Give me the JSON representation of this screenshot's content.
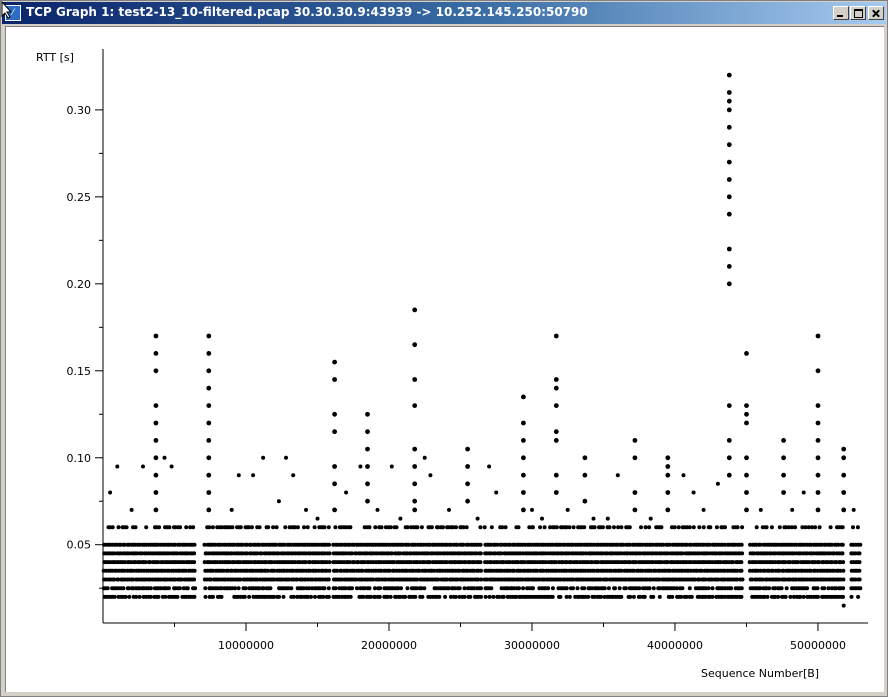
{
  "window": {
    "title": "TCP Graph 1: test2-13_10-filtered.pcap 30.30.30.9:43939 -> 10.252.145.250:50790",
    "icon": "wireshark-graph-icon",
    "controls": [
      "minimize",
      "maximize",
      "close"
    ]
  },
  "chart_data": {
    "type": "scatter",
    "ylabel": "RTT [s]",
    "xlabel": "Sequence Number[B]",
    "xlim": [
      0,
      53500000
    ],
    "ylim": [
      0.005,
      0.335
    ],
    "x_major_ticks": [
      10000000,
      20000000,
      30000000,
      40000000,
      50000000
    ],
    "x_tick_labels": [
      "10000000",
      "20000000",
      "30000000",
      "40000000",
      "50000000"
    ],
    "x_minor_ticks": [
      5000000,
      15000000,
      25000000,
      35000000,
      45000000
    ],
    "y_major_ticks": [
      0.05,
      0.1,
      0.15,
      0.2,
      0.25,
      0.3
    ],
    "y_tick_labels": [
      "0.05",
      "0.10",
      "0.15",
      "0.20",
      "0.25",
      "0.30"
    ],
    "y_minor_ticks": [
      0.025,
      0.075,
      0.125,
      0.175,
      0.225,
      0.275
    ],
    "grid": false,
    "legend": "none",
    "marker_color": "#000000",
    "baseline_bands": [
      0.02,
      0.025,
      0.03,
      0.035,
      0.04,
      0.045,
      0.05,
      0.06
    ],
    "baseline_x_range": [
      0,
      53000000
    ],
    "baseline_gaps": [
      [
        6500000,
        7000000
      ],
      [
        15900000,
        16100000
      ],
      [
        26500000,
        26700000
      ],
      [
        44800000,
        45200000
      ],
      [
        51800000,
        52300000
      ]
    ],
    "spikes": [
      {
        "x": 3700000,
        "values": [
          0.17,
          0.16,
          0.15,
          0.13,
          0.12,
          0.11,
          0.1,
          0.09,
          0.08,
          0.07
        ]
      },
      {
        "x": 7400000,
        "values": [
          0.17,
          0.16,
          0.15,
          0.14,
          0.13,
          0.12,
          0.11,
          0.1,
          0.09,
          0.08,
          0.07
        ]
      },
      {
        "x": 16200000,
        "values": [
          0.155,
          0.145,
          0.125,
          0.115,
          0.095,
          0.085,
          0.07
        ]
      },
      {
        "x": 18500000,
        "values": [
          0.125,
          0.115,
          0.105,
          0.095,
          0.085,
          0.075
        ]
      },
      {
        "x": 21800000,
        "values": [
          0.185,
          0.165,
          0.145,
          0.13,
          0.105,
          0.095,
          0.085,
          0.075,
          0.07
        ]
      },
      {
        "x": 25500000,
        "values": [
          0.105,
          0.095,
          0.085,
          0.075
        ]
      },
      {
        "x": 29400000,
        "values": [
          0.135,
          0.12,
          0.11,
          0.1,
          0.09,
          0.08,
          0.07
        ]
      },
      {
        "x": 31700000,
        "values": [
          0.17,
          0.145,
          0.14,
          0.13,
          0.115,
          0.11,
          0.09,
          0.08
        ]
      },
      {
        "x": 33700000,
        "values": [
          0.1,
          0.09,
          0.075
        ]
      },
      {
        "x": 37200000,
        "values": [
          0.11,
          0.1,
          0.08,
          0.07
        ]
      },
      {
        "x": 39500000,
        "values": [
          0.1,
          0.095,
          0.09,
          0.08,
          0.07
        ]
      },
      {
        "x": 43800000,
        "values": [
          0.32,
          0.31,
          0.305,
          0.3,
          0.29,
          0.28,
          0.27,
          0.26,
          0.25,
          0.24,
          0.22,
          0.21,
          0.2,
          0.13,
          0.11,
          0.1,
          0.09
        ]
      },
      {
        "x": 45000000,
        "values": [
          0.16,
          0.13,
          0.125,
          0.12,
          0.1,
          0.09,
          0.08,
          0.07
        ]
      },
      {
        "x": 47600000,
        "values": [
          0.11,
          0.1,
          0.09,
          0.08
        ]
      },
      {
        "x": 50000000,
        "values": [
          0.17,
          0.15,
          0.13,
          0.12,
          0.11,
          0.1,
          0.09,
          0.08,
          0.07
        ]
      },
      {
        "x": 51800000,
        "values": [
          0.105,
          0.1,
          0.09,
          0.08,
          0.07
        ]
      }
    ],
    "scattered_points": [
      {
        "x": 500000,
        "y": 0.08
      },
      {
        "x": 1000000,
        "y": 0.095
      },
      {
        "x": 2000000,
        "y": 0.07
      },
      {
        "x": 2800000,
        "y": 0.095
      },
      {
        "x": 4300000,
        "y": 0.1
      },
      {
        "x": 4800000,
        "y": 0.095
      },
      {
        "x": 9000000,
        "y": 0.07
      },
      {
        "x": 9500000,
        "y": 0.09
      },
      {
        "x": 10500000,
        "y": 0.09
      },
      {
        "x": 11200000,
        "y": 0.1
      },
      {
        "x": 12300000,
        "y": 0.075
      },
      {
        "x": 12800000,
        "y": 0.1
      },
      {
        "x": 13300000,
        "y": 0.09
      },
      {
        "x": 14200000,
        "y": 0.07
      },
      {
        "x": 15000000,
        "y": 0.065
      },
      {
        "x": 17000000,
        "y": 0.08
      },
      {
        "x": 18000000,
        "y": 0.095
      },
      {
        "x": 19200000,
        "y": 0.07
      },
      {
        "x": 20200000,
        "y": 0.095
      },
      {
        "x": 20800000,
        "y": 0.065
      },
      {
        "x": 22500000,
        "y": 0.1
      },
      {
        "x": 22900000,
        "y": 0.09
      },
      {
        "x": 24200000,
        "y": 0.07
      },
      {
        "x": 26200000,
        "y": 0.065
      },
      {
        "x": 27000000,
        "y": 0.095
      },
      {
        "x": 27500000,
        "y": 0.08
      },
      {
        "x": 30000000,
        "y": 0.07
      },
      {
        "x": 30700000,
        "y": 0.065
      },
      {
        "x": 32500000,
        "y": 0.07
      },
      {
        "x": 34300000,
        "y": 0.065
      },
      {
        "x": 35300000,
        "y": 0.065
      },
      {
        "x": 36000000,
        "y": 0.09
      },
      {
        "x": 38300000,
        "y": 0.065
      },
      {
        "x": 40600000,
        "y": 0.09
      },
      {
        "x": 41300000,
        "y": 0.08
      },
      {
        "x": 42000000,
        "y": 0.07
      },
      {
        "x": 43000000,
        "y": 0.085
      },
      {
        "x": 46000000,
        "y": 0.07
      },
      {
        "x": 48200000,
        "y": 0.07
      },
      {
        "x": 49000000,
        "y": 0.08
      },
      {
        "x": 52500000,
        "y": 0.07
      },
      {
        "x": 51800000,
        "y": 0.015
      }
    ]
  }
}
